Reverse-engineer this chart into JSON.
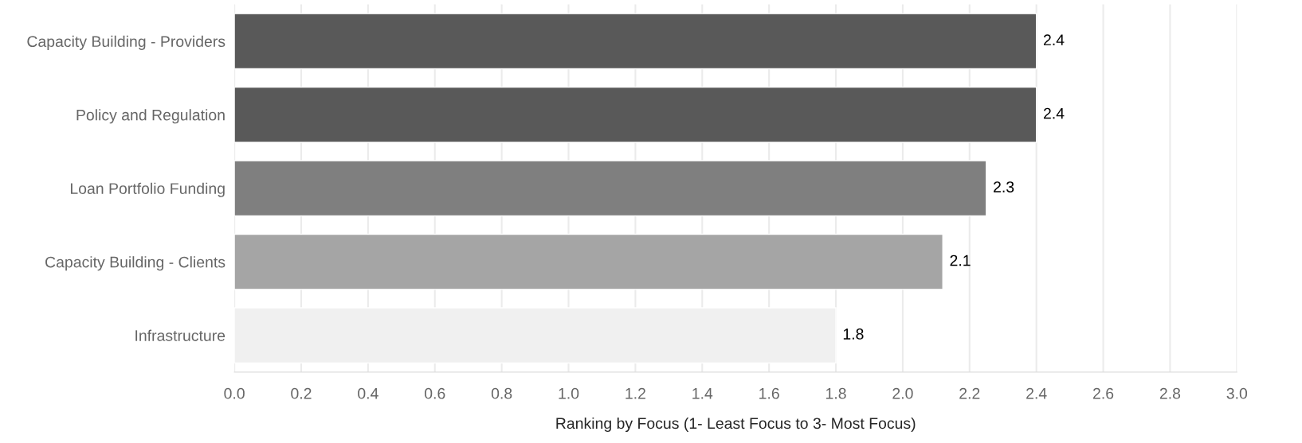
{
  "chart_data": {
    "type": "bar",
    "orientation": "horizontal",
    "xlabel": "Ranking by Focus (1- Least Focus to 3- Most Focus)",
    "categories": [
      "Capacity Building - Providers",
      "Policy and Regulation",
      "Loan Portfolio Funding",
      "Capacity Building - Clients",
      "Infrastructure"
    ],
    "values": [
      2.4,
      2.4,
      2.25,
      2.12,
      1.8
    ],
    "colors": [
      "#595959",
      "#595959",
      "#7f7f7f",
      "#a5a5a5",
      "#f0f0f0"
    ],
    "value_labels": [
      "2.4",
      "2.4",
      "2.3",
      "2.1",
      "1.8"
    ],
    "xlim": [
      0,
      3.0
    ],
    "xticks": [
      {
        "value": 0,
        "label": "0.0"
      },
      0.2,
      0.4,
      0.6,
      0.8,
      {
        "value": 1,
        "label": "1.0"
      },
      1.2,
      1.4,
      1.6,
      1.8,
      {
        "value": 2,
        "label": "2.0"
      },
      2.2,
      2.4,
      2.6,
      2.8,
      {
        "value": 3,
        "label": "3.0"
      }
    ],
    "grid": "x",
    "legend": false
  }
}
